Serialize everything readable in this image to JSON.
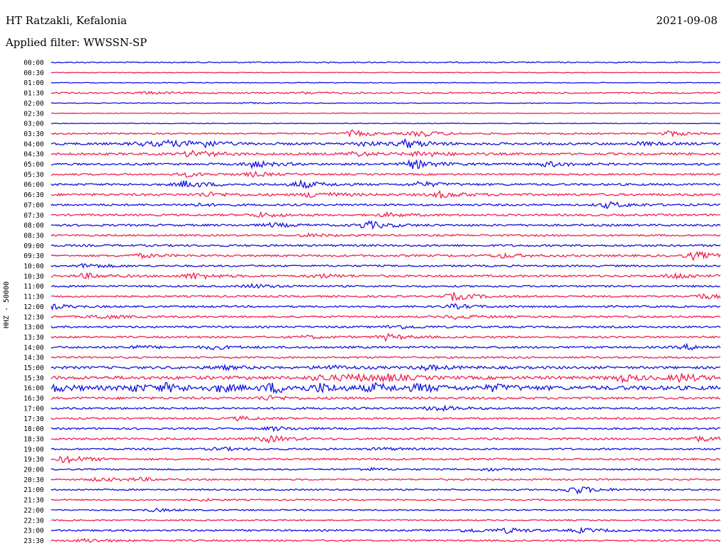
{
  "header": {
    "station": "HT Ratzakli, Kefalonia",
    "filter": "Applied filter: WWSSN-SP",
    "date": "2021-09-08"
  },
  "axis": {
    "ylabel": "HHZ - 50000"
  },
  "colors": {
    "trace_a": "#1010e0",
    "trace_b": "#f0204e",
    "text": "#000000",
    "background": "#ffffff"
  },
  "chart_data": {
    "type": "line",
    "title": "",
    "xlabel": "",
    "ylabel": "HHZ - 50000",
    "grid": false,
    "rows": [
      {
        "time": "00:00",
        "activity": 1.0,
        "events": []
      },
      {
        "time": "00:30",
        "activity": 0.6,
        "events": []
      },
      {
        "time": "01:00",
        "activity": 0.6,
        "events": []
      },
      {
        "time": "01:30",
        "activity": 1.2,
        "events": [
          [
            0.14,
            1.5
          ],
          [
            0.38,
            1.2
          ]
        ]
      },
      {
        "time": "02:00",
        "activity": 0.6,
        "events": [
          [
            0.29,
            1.0
          ]
        ]
      },
      {
        "time": "02:30",
        "activity": 0.6,
        "events": []
      },
      {
        "time": "03:00",
        "activity": 0.6,
        "events": []
      },
      {
        "time": "03:30",
        "activity": 1.3,
        "events": [
          [
            0.45,
            4.0
          ],
          [
            0.55,
            4.5
          ],
          [
            0.92,
            3.5
          ]
        ]
      },
      {
        "time": "04:00",
        "activity": 2.0,
        "events": [
          [
            0.13,
            2.5
          ],
          [
            0.17,
            4.0
          ],
          [
            0.22,
            5.0
          ],
          [
            0.46,
            3.0
          ],
          [
            0.53,
            5.5
          ],
          [
            0.88,
            2.0
          ]
        ]
      },
      {
        "time": "04:30",
        "activity": 2.0,
        "events": [
          [
            0.21,
            5.0
          ],
          [
            0.45,
            3.0
          ],
          [
            0.55,
            4.0
          ]
        ]
      },
      {
        "time": "05:00",
        "activity": 1.8,
        "events": [
          [
            0.3,
            4.5
          ],
          [
            0.54,
            6.0
          ],
          [
            0.74,
            3.5
          ]
        ]
      },
      {
        "time": "05:30",
        "activity": 1.5,
        "events": [
          [
            0.2,
            3.0
          ],
          [
            0.3,
            3.0
          ]
        ]
      },
      {
        "time": "06:00",
        "activity": 1.8,
        "events": [
          [
            0.2,
            5.0
          ],
          [
            0.37,
            5.0
          ],
          [
            0.55,
            3.5
          ]
        ]
      },
      {
        "time": "06:30",
        "activity": 2.0,
        "events": [
          [
            0.23,
            3.0
          ],
          [
            0.39,
            4.5
          ],
          [
            0.58,
            4.0
          ]
        ]
      },
      {
        "time": "07:00",
        "activity": 1.7,
        "events": [
          [
            0.21,
            2.0
          ],
          [
            0.83,
            4.0
          ]
        ]
      },
      {
        "time": "07:30",
        "activity": 1.7,
        "events": [
          [
            0.31,
            3.0
          ],
          [
            0.5,
            2.5
          ]
        ]
      },
      {
        "time": "08:00",
        "activity": 1.8,
        "events": [
          [
            0.33,
            2.5
          ],
          [
            0.47,
            5.5
          ]
        ]
      },
      {
        "time": "08:30",
        "activity": 1.6,
        "events": [
          [
            0.38,
            2.0
          ]
        ]
      },
      {
        "time": "09:00",
        "activity": 1.8,
        "events": []
      },
      {
        "time": "09:30",
        "activity": 1.8,
        "events": [
          [
            0.13,
            2.5
          ],
          [
            0.67,
            3.0
          ],
          [
            0.96,
            5.0
          ]
        ]
      },
      {
        "time": "10:00",
        "activity": 1.6,
        "events": [
          [
            0.05,
            3.0
          ]
        ]
      },
      {
        "time": "10:30",
        "activity": 1.8,
        "events": [
          [
            0.05,
            3.5
          ],
          [
            0.21,
            4.5
          ],
          [
            0.4,
            2.5
          ],
          [
            0.93,
            4.0
          ]
        ]
      },
      {
        "time": "11:00",
        "activity": 1.6,
        "events": [
          [
            0.3,
            2.5
          ]
        ]
      },
      {
        "time": "11:30",
        "activity": 1.6,
        "events": [
          [
            0.6,
            5.0
          ],
          [
            0.97,
            3.5
          ]
        ]
      },
      {
        "time": "12:00",
        "activity": 1.6,
        "events": [
          [
            0.0,
            3.0
          ],
          [
            0.6,
            3.0
          ]
        ]
      },
      {
        "time": "12:30",
        "activity": 1.6,
        "events": [
          [
            0.07,
            3.0
          ],
          [
            0.6,
            3.0
          ]
        ]
      },
      {
        "time": "13:00",
        "activity": 1.6,
        "events": [
          [
            0.51,
            3.0
          ]
        ]
      },
      {
        "time": "13:30",
        "activity": 1.6,
        "events": [
          [
            0.38,
            2.0
          ],
          [
            0.5,
            4.0
          ]
        ]
      },
      {
        "time": "14:00",
        "activity": 1.8,
        "events": [
          [
            0.12,
            2.0
          ],
          [
            0.24,
            2.5
          ],
          [
            0.95,
            3.0
          ]
        ]
      },
      {
        "time": "14:30",
        "activity": 1.6,
        "events": []
      },
      {
        "time": "15:00",
        "activity": 2.2,
        "events": [
          [
            0.25,
            2.5
          ],
          [
            0.41,
            3.0
          ],
          [
            0.56,
            3.0
          ]
        ]
      },
      {
        "time": "15:30",
        "activity": 2.8,
        "events": [
          [
            0.4,
            4.0
          ],
          [
            0.45,
            4.5
          ],
          [
            0.5,
            4.0
          ],
          [
            0.85,
            4.5
          ],
          [
            0.94,
            5.0
          ]
        ]
      },
      {
        "time": "16:00",
        "activity": 3.5,
        "events": [
          [
            0.0,
            4.0
          ],
          [
            0.12,
            4.0
          ],
          [
            0.17,
            4.5
          ],
          [
            0.25,
            4.0
          ],
          [
            0.33,
            6.0
          ],
          [
            0.4,
            5.0
          ],
          [
            0.48,
            5.0
          ],
          [
            0.55,
            4.5
          ],
          [
            0.66,
            4.0
          ]
        ]
      },
      {
        "time": "16:30",
        "activity": 2.0,
        "events": [
          [
            0.32,
            3.0
          ]
        ]
      },
      {
        "time": "17:00",
        "activity": 1.8,
        "events": [
          [
            0.57,
            3.5
          ]
        ]
      },
      {
        "time": "17:30",
        "activity": 1.6,
        "events": [
          [
            0.28,
            2.5
          ]
        ]
      },
      {
        "time": "18:00",
        "activity": 1.6,
        "events": [
          [
            0.33,
            2.5
          ]
        ]
      },
      {
        "time": "18:30",
        "activity": 1.8,
        "events": [
          [
            0.32,
            4.5
          ],
          [
            0.96,
            3.5
          ]
        ]
      },
      {
        "time": "19:00",
        "activity": 1.6,
        "events": [
          [
            0.25,
            2.0
          ],
          [
            0.49,
            1.8
          ]
        ]
      },
      {
        "time": "19:30",
        "activity": 1.7,
        "events": [
          [
            0.02,
            5.0
          ]
        ]
      },
      {
        "time": "20:00",
        "activity": 1.3,
        "events": [
          [
            0.47,
            2.0
          ],
          [
            0.65,
            2.0
          ]
        ]
      },
      {
        "time": "20:30",
        "activity": 1.4,
        "events": [
          [
            0.07,
            2.5
          ],
          [
            0.13,
            2.0
          ]
        ]
      },
      {
        "time": "21:00",
        "activity": 1.3,
        "events": [
          [
            0.78,
            6.0
          ]
        ]
      },
      {
        "time": "21:30",
        "activity": 1.2,
        "events": [
          [
            0.22,
            1.5
          ]
        ]
      },
      {
        "time": "22:00",
        "activity": 1.2,
        "events": [
          [
            0.15,
            2.0
          ]
        ]
      },
      {
        "time": "22:30",
        "activity": 1.2,
        "events": []
      },
      {
        "time": "23:00",
        "activity": 1.5,
        "events": [
          [
            0.62,
            2.5
          ],
          [
            0.68,
            3.0
          ],
          [
            0.79,
            3.0
          ]
        ]
      },
      {
        "time": "23:30",
        "activity": 1.4,
        "events": [
          [
            0.05,
            2.5
          ]
        ]
      }
    ]
  }
}
